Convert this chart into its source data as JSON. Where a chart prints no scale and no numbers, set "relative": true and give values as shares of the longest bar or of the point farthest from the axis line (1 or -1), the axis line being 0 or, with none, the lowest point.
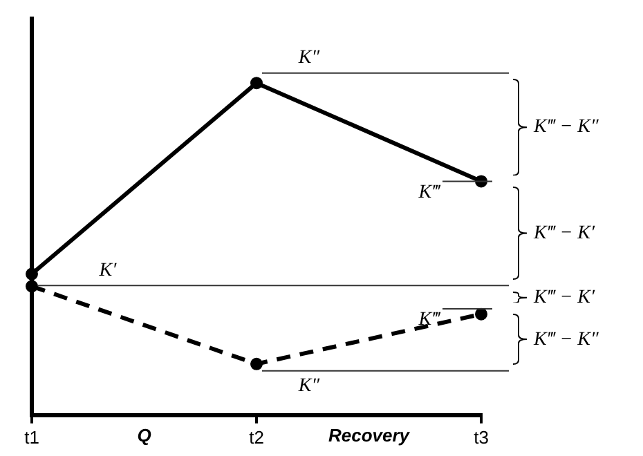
{
  "chart_data": {
    "type": "line",
    "relative": true,
    "categories": [
      "t1",
      "t2",
      "t3"
    ],
    "series": [
      {
        "color": "#000000",
        "values": [
          0.425,
          1,
          0.704
        ],
        "line_style": "solid"
      },
      {
        "color": "#000000",
        "values": [
          0.388,
          0.154,
          0.304
        ],
        "line_style": "dashed"
      }
    ],
    "marker": "circle",
    "grid": false,
    "legend": false,
    "ref_lines": [
      {
        "axis": "y",
        "value": 1.03,
        "label": "K″",
        "color": "#333333"
      },
      {
        "axis": "y",
        "value": 0.704,
        "label": "K‴",
        "color": "#333333"
      },
      {
        "axis": "y",
        "value": 0.39,
        "label": "K′",
        "color": "#333333"
      },
      {
        "axis": "y",
        "value": 0.32,
        "label": "K‴",
        "color": "#333333"
      },
      {
        "axis": "y",
        "value": 0.133,
        "label": "K″",
        "color": "#333333"
      }
    ],
    "annotations": [
      "K‴ − K″",
      "K‴ − K′",
      "K‴ − K′",
      "K‴ − K″",
      "Q",
      "Recovery"
    ]
  }
}
